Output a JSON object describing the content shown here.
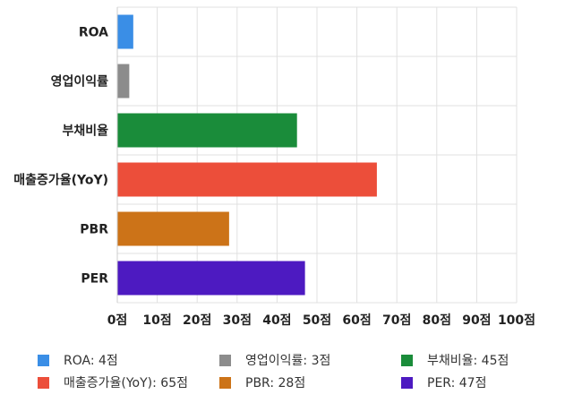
{
  "chart_data": {
    "type": "bar",
    "orientation": "horizontal",
    "categories": [
      "ROA",
      "영업이익률",
      "부채비율",
      "매출증가율(YoY)",
      "PBR",
      "PER"
    ],
    "values": [
      4,
      3,
      45,
      65,
      28,
      47
    ],
    "colors": [
      "#3a8ee6",
      "#8c8c8c",
      "#1a8c3a",
      "#ec4e3a",
      "#cc7318",
      "#4d1ac1"
    ],
    "xlim": [
      0,
      100
    ],
    "xticks": [
      "0점",
      "10점",
      "20점",
      "30점",
      "40점",
      "50점",
      "60점",
      "70점",
      "80점",
      "90점",
      "100점"
    ],
    "grid": true,
    "legend_position": "bottom"
  },
  "legend": {
    "items": [
      {
        "label": "ROA: 4점",
        "color": "#3a8ee6"
      },
      {
        "label": "영업이익률: 3점",
        "color": "#8c8c8c"
      },
      {
        "label": "부채비율: 45점",
        "color": "#1a8c3a"
      },
      {
        "label": "매출증가율(YoY): 65점",
        "color": "#ec4e3a"
      },
      {
        "label": "PBR: 28점",
        "color": "#cc7318"
      },
      {
        "label": "PER: 47점",
        "color": "#4d1ac1"
      }
    ]
  }
}
